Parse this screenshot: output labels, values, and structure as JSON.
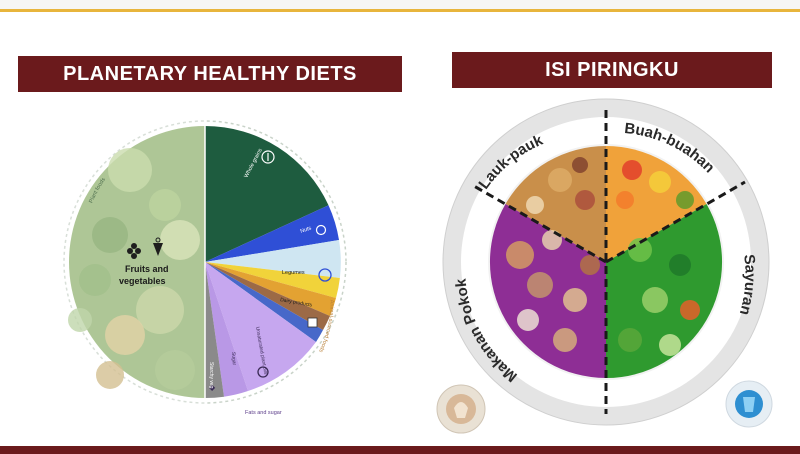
{
  "left": {
    "title": "PLANETARY HEALTHY DIETS",
    "arc_plant": "Plant foods",
    "arc_animal": "Animal-sourced foods",
    "arc_fats": "Fats and sugar",
    "fv_line1": "Fruits and",
    "fv_line2": "vegetables",
    "wedges": {
      "whole_grains": "Whole grains",
      "nuts": "Nuts",
      "legumes": "Legumes",
      "dairy": "Dairy products",
      "unsaturated": "Unsaturated plant oils",
      "sugar": "Sugar",
      "starchy": "Starchy veg"
    }
  },
  "right": {
    "title": "ISI PIRINGKU",
    "lauk": "Lauk-pauk",
    "buah": "Buah-buahan",
    "makanan": "Makanan Pokok",
    "sayuran": "Sayuran"
  },
  "colors": {
    "brand": "#6b1a1c",
    "accent": "#e8b53c",
    "whole_grains": "#1e5c3f",
    "nuts": "#2f4fd6",
    "legumes": "#cfe6f2",
    "dairy": "#f1d33a",
    "unsaturated": "#c6a7ef",
    "staple_purple": "#8e2e95",
    "veg_green": "#2f9a2f"
  }
}
